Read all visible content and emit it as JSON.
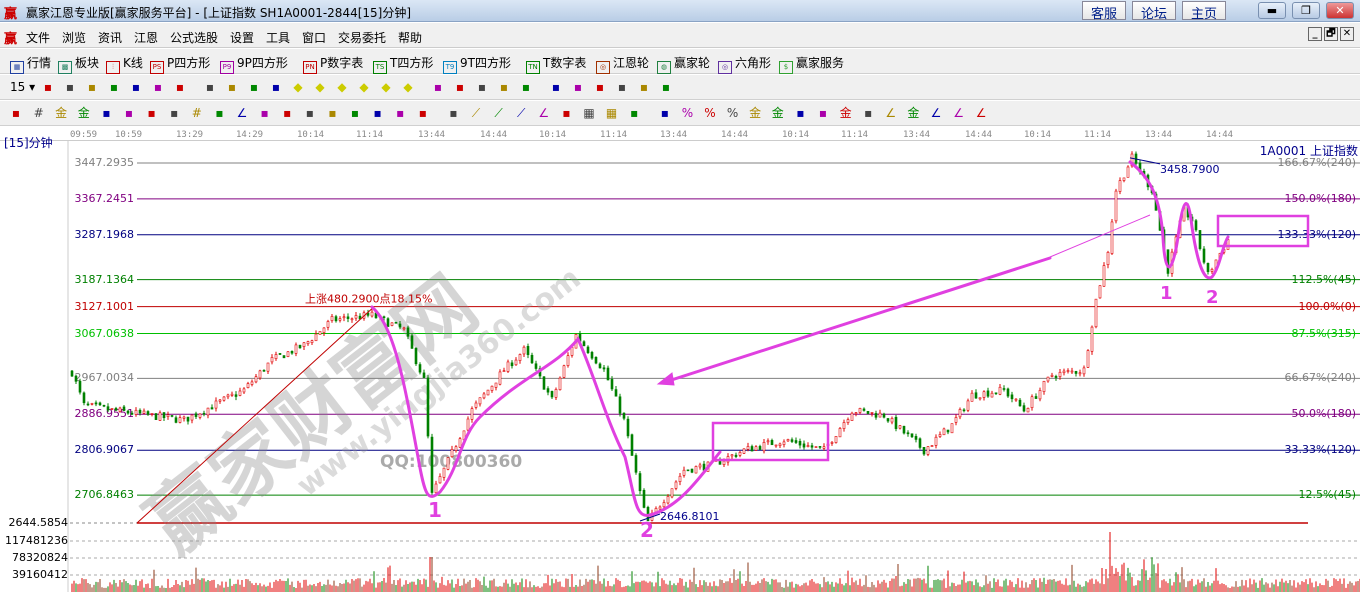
{
  "titlebar": {
    "logo": "赢",
    "title": "赢家江恩专业版[赢家服务平台] - [上证指数  SH1A0001-2844[15]分钟]",
    "buttons": [
      "客服",
      "论坛",
      "主页"
    ],
    "window_controls": [
      "minimize",
      "restore",
      "close"
    ]
  },
  "menubar": {
    "logo": "赢",
    "items": [
      "文件",
      "浏览",
      "资讯",
      "江恩",
      "公式选股",
      "设置",
      "工具",
      "窗口",
      "交易委托",
      "帮助"
    ],
    "mdi_controls": [
      "_",
      "🗗",
      "✕"
    ]
  },
  "toolbar1": {
    "items": [
      {
        "label": "行情",
        "icon": "grid-table-icon",
        "badge": "▦",
        "color": "#2040a0"
      },
      {
        "label": "板块",
        "icon": "blocks-icon",
        "badge": "▩",
        "color": "#208060"
      },
      {
        "label": "K线",
        "icon": "candlestick-icon",
        "badge": "⫶",
        "color": "#c00000"
      },
      {
        "label": "P四方形",
        "icon": "ps-icon",
        "badge": "PS",
        "color": "#c00000"
      },
      {
        "label": "9P四方形",
        "icon": "p9-icon",
        "badge": "P9",
        "color": "#a000a0"
      },
      {
        "label": "P数字表",
        "icon": "pn-icon",
        "badge": "PN",
        "color": "#c00000"
      },
      {
        "label": "T四方形",
        "icon": "ts-icon",
        "badge": "TS",
        "color": "#008000"
      },
      {
        "label": "9T四方形",
        "icon": "t9-icon",
        "badge": "T9",
        "color": "#0080c0"
      },
      {
        "label": "T数字表",
        "icon": "tn-icon",
        "badge": "TN",
        "color": "#008000"
      },
      {
        "label": "江恩轮",
        "icon": "gann-wheel-icon",
        "badge": "◎",
        "color": "#a03000"
      },
      {
        "label": "赢家轮",
        "icon": "winner-wheel-icon",
        "badge": "◍",
        "color": "#208040"
      },
      {
        "label": "六角形",
        "icon": "hexagon-icon",
        "badge": "◎",
        "color": "#6030a0"
      },
      {
        "label": "赢家服务",
        "icon": "dollar-icon",
        "badge": "$",
        "color": "#30a030"
      }
    ]
  },
  "toolbar2": {
    "period": "15",
    "icons": [
      "zoom-icon",
      "doc-icon",
      "bar3-icon",
      "bar9-icon",
      "candle-select-icon",
      "cross-out-icon",
      "color-chart-icon",
      "first-icon",
      "last-icon",
      "prev-icon",
      "next-icon",
      "left-diamond-icon",
      "right-diamond-icon",
      "expand-diamond-icon",
      "shrink-diamond-icon",
      "star-diamond-icon",
      "move-diamond-icon",
      "hand-icon",
      "crosshair-icon",
      "line-draw-icon",
      "mask-icon",
      "pattern-icon",
      "calendar-icon",
      "calculator-icon",
      "notes-icon",
      "save-icon",
      "network-icon",
      "print-icon"
    ]
  },
  "toolbar3": {
    "icons": [
      "pen-icon",
      "hash-icon",
      "gold1-icon",
      "gold2-icon",
      "f-icon",
      "spiral-icon",
      "pen2-icon",
      "circle-icon",
      "hash2-icon",
      "n2-icon",
      "triangle-icon",
      "target-icon",
      "star-icon",
      "square-icon",
      "parallel-icon",
      "god-icon",
      "win-icon",
      "table-icon",
      "width-icon",
      "box-icon",
      "fan-icon",
      "square-fan-icon",
      "red-fan-icon",
      "angle-icon",
      "zigzag-icon",
      "grid-icon",
      "grid2-icon",
      "lines-icon",
      "ruler-icon",
      "percent-red-icon",
      "percent-icon",
      "percent-lines-icon",
      "gold-circle-icon",
      "gold-lines-icon",
      "bolt-icon",
      "up-icon",
      "gold3-icon",
      "j-icon",
      "f-angle-icon",
      "gold-angle-icon",
      "god-angle-icon",
      "win-angle-icon",
      "four-angle-icon"
    ]
  },
  "chart": {
    "period_label": "[15]分钟",
    "symbol_label": "1A0001  上证指数",
    "time_labels": [
      "09:59",
      "10:59",
      "13:29",
      "14:29",
      "10:14",
      "11:14",
      "13:44",
      "14:44",
      "10:14",
      "11:14",
      "13:44",
      "14:44",
      "10:14",
      "11:14",
      "13:44",
      "14:44",
      "10:14",
      "11:14",
      "13:44",
      "14:44"
    ],
    "levels": [
      {
        "price": "3447.2935",
        "pct": "166.67%(240)",
        "color": "#808080"
      },
      {
        "price": "3367.2451",
        "pct": "150.0%(180)",
        "color": "#800080"
      },
      {
        "price": "3287.1968",
        "pct": "133.33%(120)",
        "color": "#000080"
      },
      {
        "price": "3187.1364",
        "pct": "112.5%(45)",
        "color": "#008000"
      },
      {
        "price": "3127.1001",
        "pct": "100.0%(0)",
        "color": "#c00000"
      },
      {
        "price": "3067.0638",
        "pct": "87.5%(315)",
        "color": "#00c000"
      },
      {
        "price": "2967.0034",
        "pct": "66.67%(240)",
        "color": "#808080"
      },
      {
        "price": "2886.9551",
        "pct": "50.0%(180)",
        "color": "#800080"
      },
      {
        "price": "2806.9067",
        "pct": "33.33%(120)",
        "color": "#000080"
      },
      {
        "price": "2706.8463",
        "pct": "12.5%(45)",
        "color": "#008000"
      }
    ],
    "base_price": "2644.5854",
    "high_label": "3458.7900",
    "low_label": "2646.8101",
    "rise_label": "上涨480.2900点18.15%",
    "volume_labels": [
      "117481236",
      "78320824",
      "39160412"
    ],
    "annotations": {
      "left_marks": [
        "1",
        "2"
      ],
      "right_marks": [
        "1",
        "2"
      ]
    },
    "watermark": {
      "main": "赢家财富网",
      "url": "www.yingjia360.com",
      "qq": "QQ:100800360"
    },
    "colors": {
      "up": "#e00000",
      "down": "#008000",
      "annotation": "#e040e0"
    }
  },
  "chart_data": {
    "type": "candlestick",
    "ylim": [
      2644.5854,
      3447.2935
    ],
    "price_path_bar_index": [
      0,
      3,
      10,
      28,
      43,
      50,
      58,
      65,
      75,
      83,
      88,
      90,
      93,
      100,
      108,
      113,
      120,
      126,
      133,
      138,
      143,
      144,
      153,
      160,
      168,
      178,
      188,
      195,
      203,
      213,
      220,
      225,
      233,
      238,
      245,
      253,
      256,
      259,
      261,
      265,
      270,
      274,
      278,
      280,
      284,
      286,
      289
    ],
    "price_path": [
      2981,
      2907,
      2896,
      2874,
      2941,
      3008,
      3041,
      3097,
      3108,
      3075,
      2963,
      2707,
      2763,
      2896,
      2986,
      3030,
      2919,
      3064,
      2986,
      2874,
      2673,
      2647,
      2763,
      2774,
      2807,
      2830,
      2807,
      2896,
      2885,
      2807,
      2863,
      2930,
      2941,
      2896,
      2975,
      2986,
      3142,
      3253,
      3387,
      3459,
      3387,
      3209,
      3343,
      3320,
      3198,
      3231,
      3276
    ]
  }
}
